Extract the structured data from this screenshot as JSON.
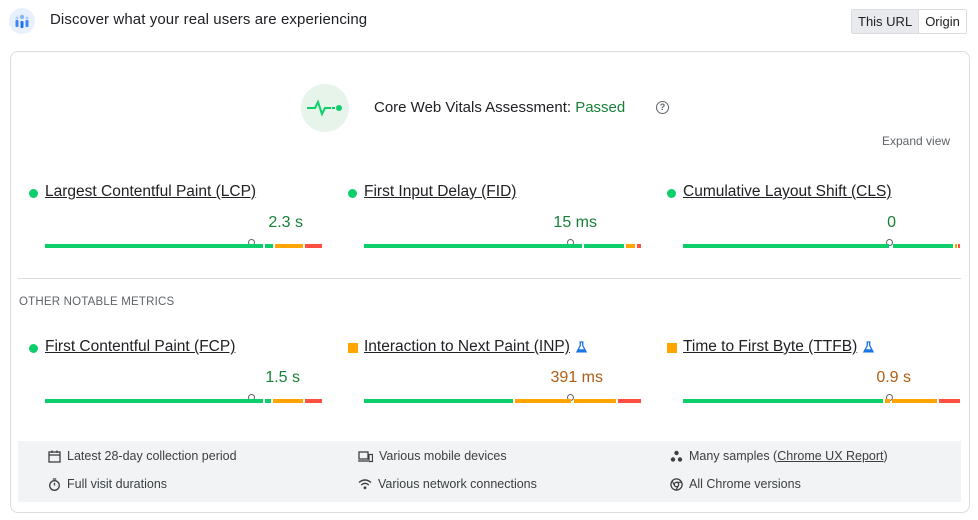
{
  "header": {
    "title": "Discover what your real users are experiencing",
    "toggle": [
      "This URL",
      "Origin"
    ]
  },
  "assessment": {
    "label": "Core Web Vitals Assessment: ",
    "status": "Passed",
    "help": "?",
    "expand": "Expand view"
  },
  "core_metrics": [
    {
      "name": "Largest Contentful Paint (LCP)",
      "value": "2.3 s",
      "rating": "good"
    },
    {
      "name": "First Input Delay (FID)",
      "value": "15 ms",
      "rating": "good"
    },
    {
      "name": "Cumulative Layout Shift (CLS)",
      "value": "0",
      "rating": "good"
    }
  ],
  "other_section_label": "OTHER NOTABLE METRICS",
  "other_metrics": [
    {
      "name": "First Contentful Paint (FCP)",
      "value": "1.5 s",
      "rating": "good",
      "experimental": false
    },
    {
      "name": "Interaction to Next Paint (INP)",
      "value": "391 ms",
      "rating": "needs-improvement",
      "experimental": true
    },
    {
      "name": "Time to First Byte (TTFB)",
      "value": "0.9 s",
      "rating": "needs-improvement",
      "experimental": true
    }
  ],
  "footer": {
    "collection_period": "Latest 28-day collection period",
    "visit_durations": "Full visit durations",
    "devices": "Various mobile devices",
    "connections": "Various network connections",
    "samples_prefix": "Many samples (",
    "samples_link": "Chrome UX Report",
    "samples_suffix": ")",
    "versions": "All Chrome versions"
  },
  "colors": {
    "good": "#0cce6b",
    "needs_improvement": "#ffa400",
    "poor": "#ff4e42",
    "passed_text": "#188038"
  }
}
